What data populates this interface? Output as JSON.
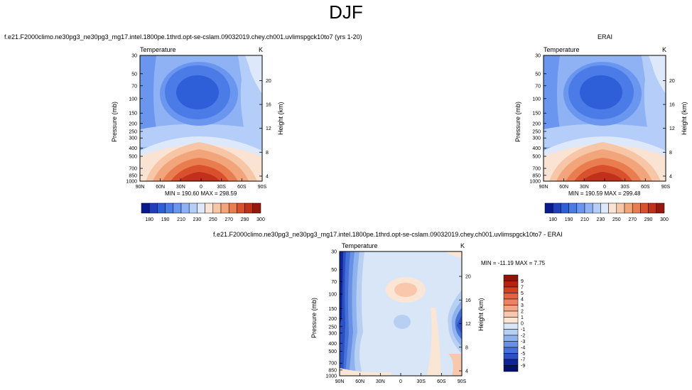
{
  "title": "DJF",
  "panels": {
    "model": {
      "title": "f.e21.F2000climo.ne30pg3_ne30pg3_mg17.intel.1800pe.1thrd.opt-se-cslam.09032019.chey.ch001.uvlimspgck10to7 (yrs 1-20)",
      "left_label": "Temperature",
      "right_label": "K",
      "minmax": "MIN = 190.60   MAX = 298.59"
    },
    "obs": {
      "title": "ERAI",
      "left_label": "Temperature",
      "right_label": "K",
      "minmax": "MIN = 190.59   MAX = 299.48"
    },
    "diff": {
      "title": "f.e21.F2000climo.ne30pg3_ne30pg3_mg17.intel.1800pe.1thrd.opt-se-cslam.09032019.chey.ch001.uvlimspgck10to7 - ERAI",
      "left_label": "Temperature",
      "right_label": "K",
      "minmax": "MIN = -11.19   MAX =   7.75"
    }
  },
  "axes": {
    "ylabel": "Pressure (mb)",
    "y2label": "Height (km)",
    "pressure_ticks": [
      "30",
      "50",
      "70",
      "100",
      "150",
      "200",
      "250",
      "300",
      "400",
      "500",
      "700",
      "850",
      "1000"
    ],
    "height_ticks": [
      "20",
      "16",
      "12",
      "8",
      "4"
    ],
    "lat_ticks": [
      "90N",
      "60N",
      "30N",
      "0",
      "30S",
      "60S",
      "90S"
    ]
  },
  "colorbars": {
    "abs_labels": [
      "180",
      "190",
      "210",
      "230",
      "250",
      "270",
      "290",
      "300"
    ],
    "abs_colors": [
      "#0a1a8c",
      "#1f3fbf",
      "#2f5fd8",
      "#4a7be6",
      "#6a96ef",
      "#8fb2f5",
      "#b5cdf9",
      "#dde8fb",
      "#fbe3d4",
      "#f6c6a6",
      "#f2a47a",
      "#ea7d4f",
      "#d9502c",
      "#c0301a",
      "#96170d"
    ],
    "diff_labels": [
      "9",
      "7",
      "5",
      "4",
      "3",
      "2",
      "1",
      "0",
      "-1",
      "-2",
      "-3",
      "-4",
      "-5",
      "-7",
      "-9"
    ],
    "diff_colors": [
      "#8f120b",
      "#b5230f",
      "#d24020",
      "#e36240",
      "#ee8363",
      "#f4a585",
      "#f8c7ac",
      "#fbe6d6",
      "#d9e6f8",
      "#b7cff3",
      "#8eb2ee",
      "#6890e5",
      "#4671d9",
      "#2a50c4",
      "#10249a",
      "#050f6e"
    ]
  },
  "chart_data": [
    {
      "type": "heatmap",
      "title": "f.e21.F2000climo.ne30pg3_ne30pg3_mg17.intel.1800pe.1thrd.opt-se-cslam.09032019.chey.ch001.uvlimspgck10to7 (yrs 1-20)",
      "variable": "Temperature",
      "units": "K",
      "xlabel": "",
      "ylabel": "Pressure (mb)",
      "y2label": "Height (km)",
      "min": 190.6,
      "max": 298.59,
      "x_ticks": [
        "90N",
        "60N",
        "30N",
        "0",
        "30S",
        "60S",
        "90S"
      ],
      "y_ticks": [
        30,
        50,
        70,
        100,
        150,
        200,
        250,
        300,
        400,
        500,
        700,
        850,
        1000
      ],
      "colorbar_levels": [
        180,
        190,
        210,
        230,
        250,
        270,
        290,
        300
      ]
    },
    {
      "type": "heatmap",
      "title": "ERAI",
      "variable": "Temperature",
      "units": "K",
      "xlabel": "",
      "ylabel": "Pressure (mb)",
      "y2label": "Height (km)",
      "min": 190.59,
      "max": 299.48,
      "x_ticks": [
        "90N",
        "60N",
        "30N",
        "0",
        "30S",
        "60S",
        "90S"
      ],
      "y_ticks": [
        30,
        50,
        70,
        100,
        150,
        200,
        250,
        300,
        400,
        500,
        700,
        850,
        1000
      ],
      "colorbar_levels": [
        180,
        190,
        210,
        230,
        250,
        270,
        290,
        300
      ]
    },
    {
      "type": "heatmap",
      "title": "f.e21.F2000climo.ne30pg3_ne30pg3_mg17.intel.1800pe.1thrd.opt-se-cslam.09032019.chey.ch001.uvlimspgck10to7 - ERAI",
      "variable": "Temperature",
      "units": "K",
      "xlabel": "",
      "ylabel": "Pressure (mb)",
      "y2label": "Height (km)",
      "min": -11.19,
      "max": 7.75,
      "x_ticks": [
        "90N",
        "60N",
        "30N",
        "0",
        "30S",
        "60S",
        "90S"
      ],
      "y_ticks": [
        30,
        50,
        70,
        100,
        150,
        200,
        250,
        300,
        400,
        500,
        700,
        850,
        1000
      ],
      "colorbar_levels": [
        9,
        7,
        5,
        4,
        3,
        2,
        1,
        0,
        -1,
        -2,
        -3,
        -4,
        -5,
        -7,
        -9
      ]
    }
  ]
}
